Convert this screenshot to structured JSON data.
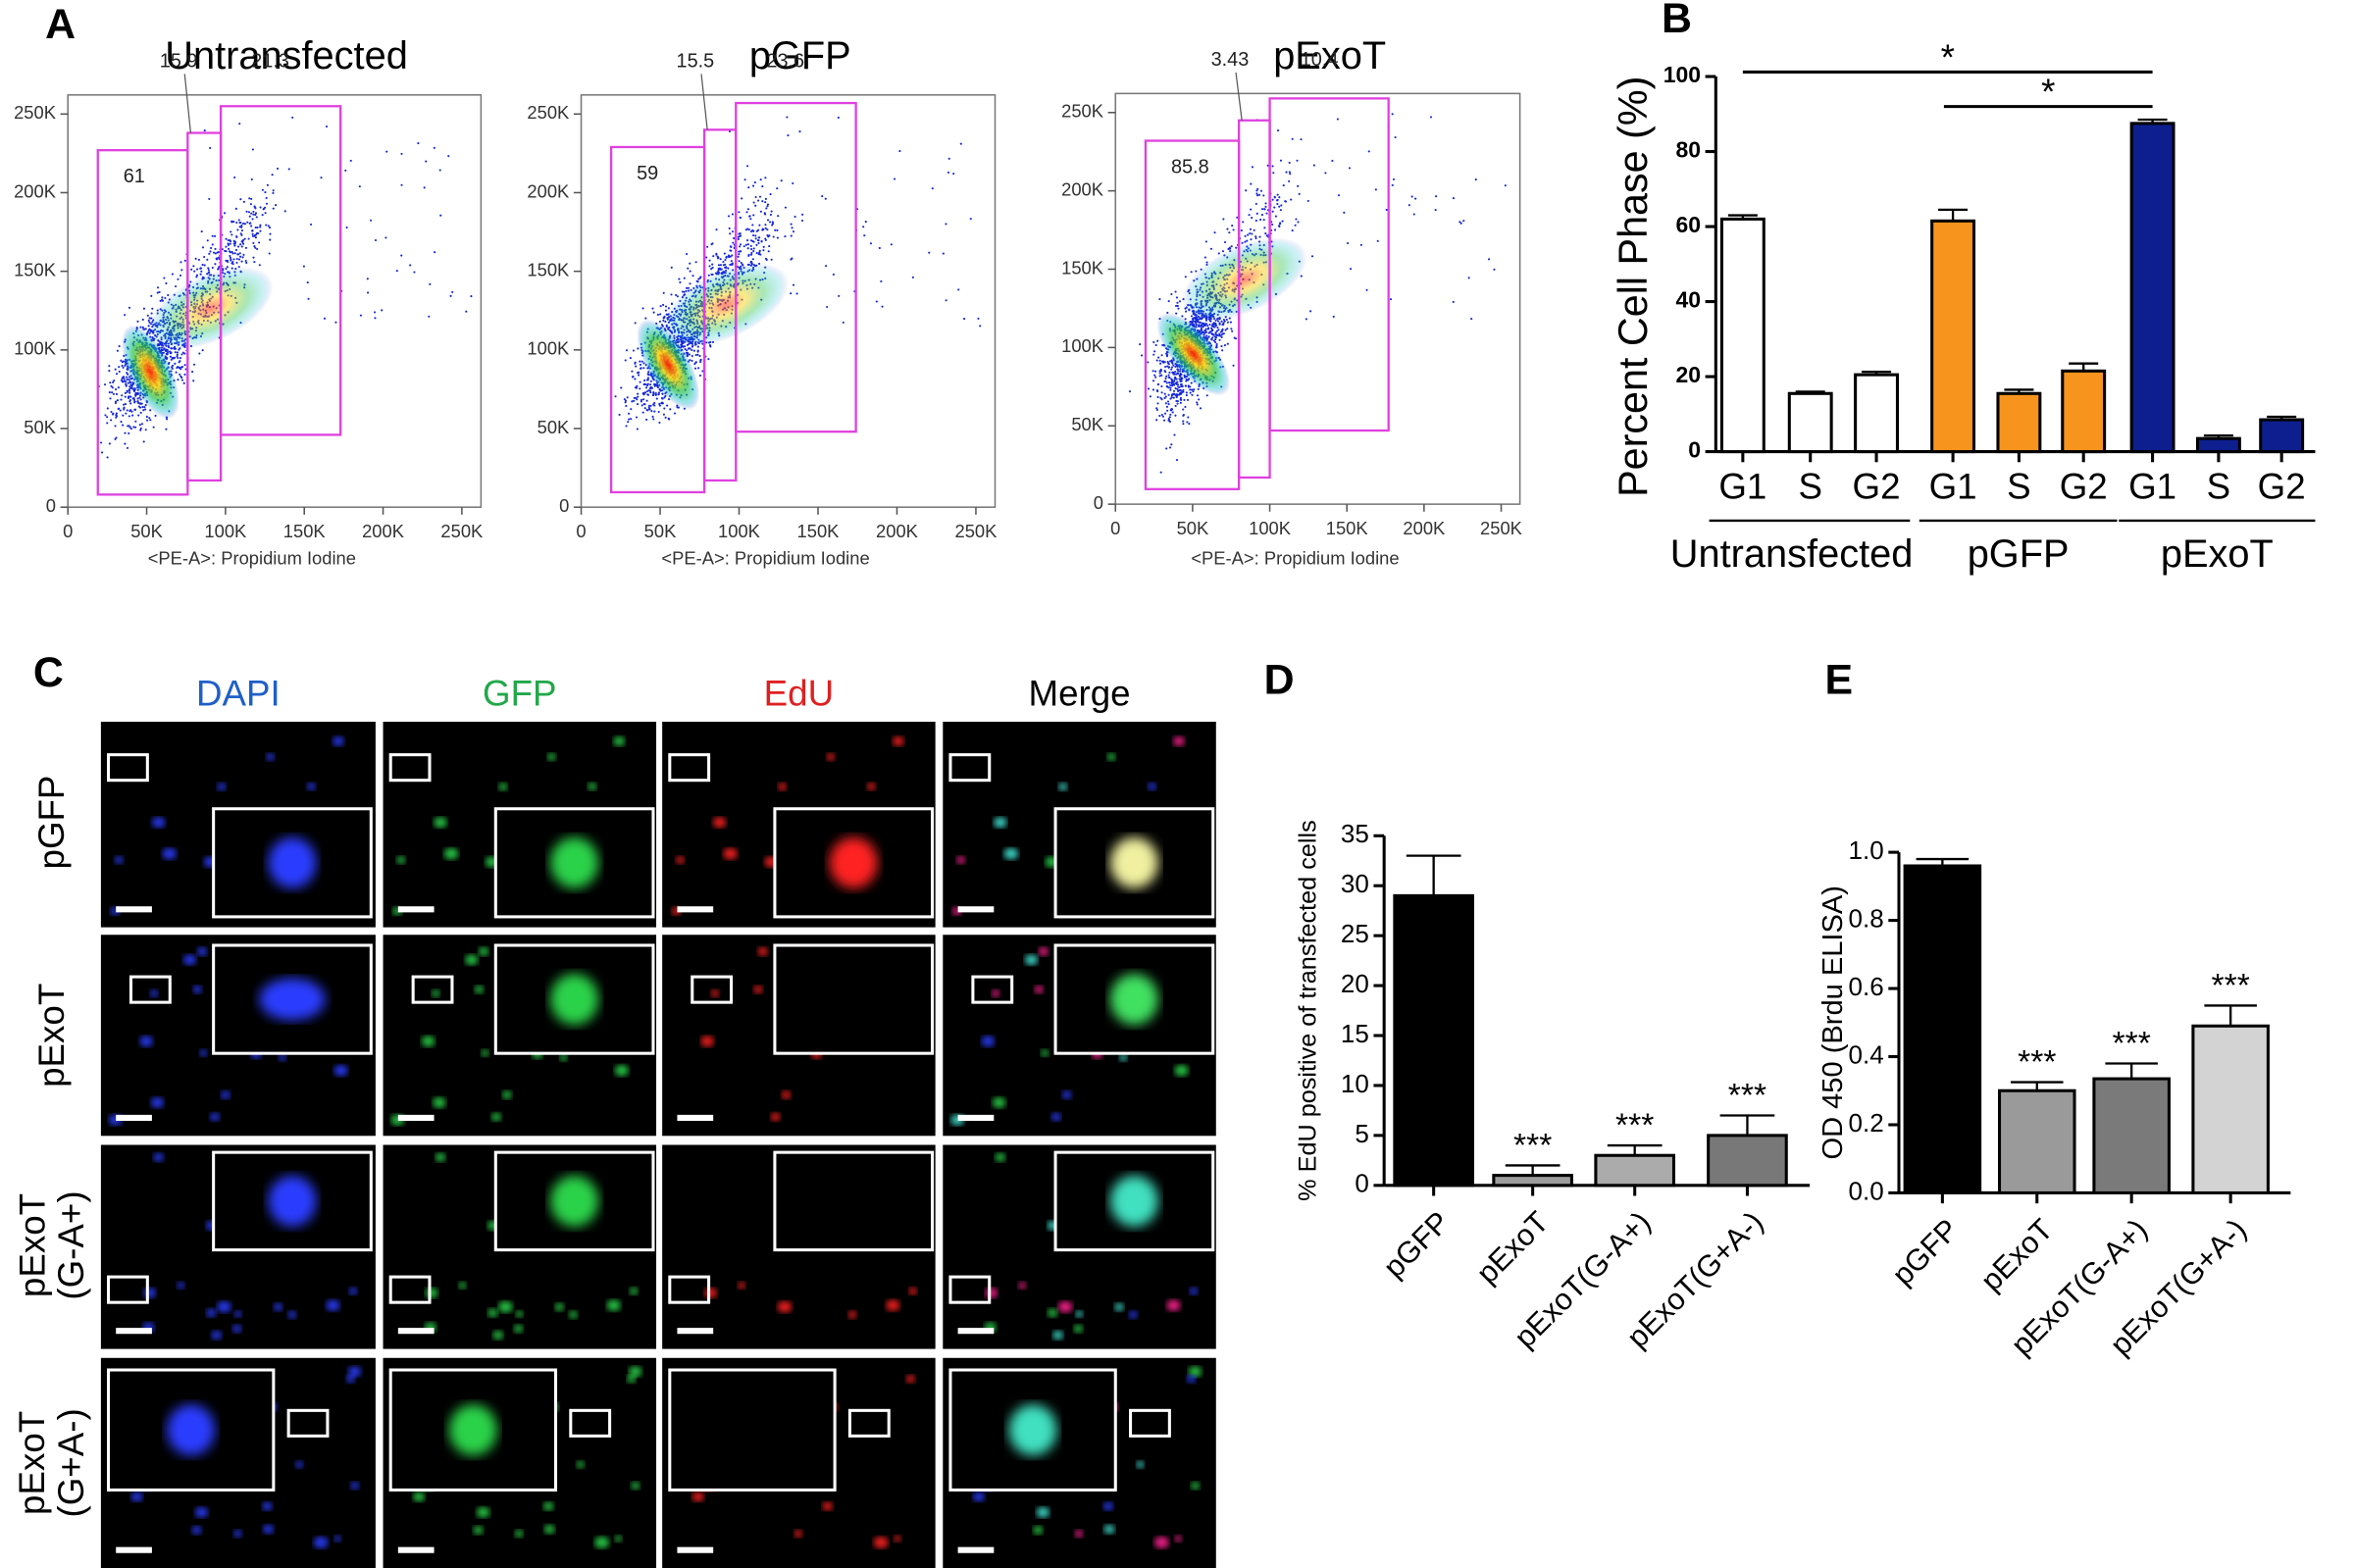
{
  "panel_labels": [
    "A",
    "B",
    "C",
    "D",
    "E"
  ],
  "chart_data": [
    {
      "type": "flow",
      "title": "Untransfected",
      "xlabel": "<PE-A>: Propidium Iodine",
      "gate_color": "#e040e0",
      "xlim": [
        0,
        262144
      ],
      "ylim": [
        0,
        262144
      ],
      "xticks": [
        0,
        {
          "value": 50000,
          "label": "50K"
        },
        {
          "value": 100000,
          "label": "100K"
        },
        {
          "value": 150000,
          "label": "150K"
        },
        {
          "value": 200000,
          "label": "200K"
        },
        {
          "value": 250000,
          "label": "250K"
        }
      ],
      "yticks": [
        0,
        {
          "value": 50000,
          "label": "50K"
        },
        {
          "value": 100000,
          "label": "100K"
        },
        {
          "value": 150000,
          "label": "150K"
        },
        {
          "value": 200000,
          "label": "200K"
        },
        {
          "value": 250000,
          "label": "250K"
        }
      ],
      "gates": [
        {
          "value": 61,
          "x": [
            19000,
            76000
          ],
          "y": [
            8000,
            227000
          ]
        },
        {
          "value": 15.9,
          "x": [
            76000,
            97000
          ],
          "y": [
            17000,
            238000
          ]
        },
        {
          "value": 21.3,
          "x": [
            97000,
            173000
          ],
          "y": [
            46000,
            255000
          ]
        }
      ]
    },
    {
      "type": "flow",
      "title": "pGFP",
      "xlabel": "<PE-A>: Propidium Iodine",
      "gate_color": "#e040e0",
      "xlim": [
        0,
        262144
      ],
      "ylim": [
        0,
        262144
      ],
      "xticks": [
        0,
        {
          "value": 50000,
          "label": "50K"
        },
        {
          "value": 100000,
          "label": "100K"
        },
        {
          "value": 150000,
          "label": "150K"
        },
        {
          "value": 200000,
          "label": "200K"
        },
        {
          "value": 250000,
          "label": "250K"
        }
      ],
      "yticks": [
        0,
        {
          "value": 50000,
          "label": "50K"
        },
        {
          "value": 100000,
          "label": "100K"
        },
        {
          "value": 150000,
          "label": "150K"
        },
        {
          "value": 200000,
          "label": "200K"
        },
        {
          "value": 250000,
          "label": "250K"
        }
      ],
      "gates": [
        {
          "value": 59,
          "x": [
            19000,
            78000
          ],
          "y": [
            9500,
            229000
          ]
        },
        {
          "value": 15.5,
          "x": [
            78000,
            98000
          ],
          "y": [
            17000,
            240000
          ]
        },
        {
          "value": 23.6,
          "x": [
            98000,
            174000
          ],
          "y": [
            48000,
            257000
          ]
        }
      ]
    },
    {
      "type": "flow",
      "title": "pExoT",
      "xlabel": "<PE-A>: Propidium Iodine",
      "gate_color": "#e040e0",
      "xlim": [
        0,
        262144
      ],
      "ylim": [
        0,
        262144
      ],
      "xticks": [
        0,
        {
          "value": 50000,
          "label": "50K"
        },
        {
          "value": 100000,
          "label": "100K"
        },
        {
          "value": 150000,
          "label": "150K"
        },
        {
          "value": 200000,
          "label": "200K"
        },
        {
          "value": 250000,
          "label": "250K"
        }
      ],
      "yticks": [
        0,
        {
          "value": 50000,
          "label": "50K"
        },
        {
          "value": 100000,
          "label": "100K"
        },
        {
          "value": 150000,
          "label": "150K"
        },
        {
          "value": 200000,
          "label": "200K"
        },
        {
          "value": 250000,
          "label": "250K"
        }
      ],
      "gates": [
        {
          "value": 85.8,
          "x": [
            19500,
            80000
          ],
          "y": [
            9600,
            232000
          ]
        },
        {
          "value": 3.43,
          "x": [
            80000,
            100000
          ],
          "y": [
            17000,
            245000
          ]
        },
        {
          "value": 10.4,
          "x": [
            100000,
            177000
          ],
          "y": [
            47000,
            259000
          ]
        }
      ]
    },
    {
      "type": "grouped_bar",
      "ylabel": "Percent Cell Phase (%)",
      "categories": [
        "G1",
        "S",
        "G2",
        "G1",
        "S",
        "G2",
        "G1",
        "S",
        "G2"
      ],
      "groups": [
        "Untransfected",
        "pGFP",
        "pExoT"
      ],
      "colors": [
        "#ffffff",
        "#f7941d",
        "#0d1f8f"
      ],
      "values": [
        62,
        15.5,
        20.5,
        61.5,
        15.5,
        21.5,
        87.5,
        3.5,
        8.5
      ],
      "errors": [
        1,
        0.5,
        0.8,
        3,
        1,
        2,
        1,
        0.8,
        0.8
      ],
      "ylim": [
        0,
        100
      ],
      "yticks": [
        0,
        20,
        40,
        60,
        80,
        100
      ],
      "significance": [
        "*",
        "*"
      ]
    },
    {
      "type": "bar",
      "ylabel": "% EdU positive of transfected cells",
      "categories": [
        "pGFP",
        "pExoT",
        "pExoT(G-A+)",
        "pExoT(G+A-)"
      ],
      "colors": [
        "#000000",
        "#9c9c9c",
        "#ababab",
        "#787878"
      ],
      "values": [
        29,
        1,
        3,
        5
      ],
      "errors": [
        4,
        1,
        1,
        2
      ],
      "annotations": [
        null,
        "***",
        "***",
        "***"
      ],
      "ylim": [
        0,
        35
      ],
      "yticks": [
        0,
        5,
        10,
        15,
        20,
        25,
        30,
        35
      ]
    },
    {
      "type": "bar",
      "ylabel": "OD 450 (Brdu ELISA)",
      "categories": [
        "pGFP",
        "pExoT",
        "pExoT(G-A+)",
        "pExoT(G+A-)"
      ],
      "colors": [
        "#000000",
        "#9a9a9a",
        "#7a7a7a",
        "#d3d3d3"
      ],
      "values": [
        0.96,
        0.3,
        0.335,
        0.49
      ],
      "errors": [
        0.02,
        0.025,
        0.045,
        0.06
      ],
      "annotations": [
        null,
        "***",
        "***",
        "***"
      ],
      "ylim": [
        0,
        1.0
      ],
      "yticks": [
        {
          "value": 0,
          "label": "0.0"
        },
        0.2,
        0.4,
        0.6,
        0.8,
        {
          "value": 1.0,
          "label": "1.0"
        }
      ]
    }
  ],
  "image_panel": {
    "columns": [
      "DAPI",
      "GFP",
      "EdU",
      "Merge"
    ],
    "rows": [
      [
        "pGFP"
      ],
      [
        "pExoT"
      ],
      [
        "pExoT",
        "(G-A+)"
      ],
      [
        "pExoT",
        "(G+A-)"
      ]
    ]
  }
}
